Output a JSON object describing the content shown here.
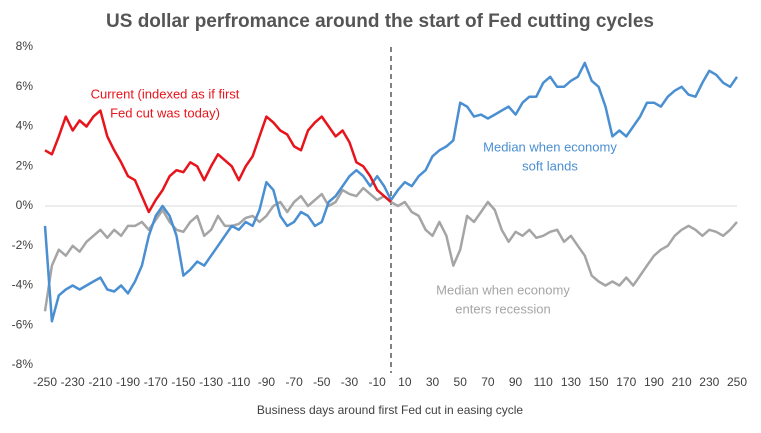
{
  "chart_data": {
    "type": "line",
    "title": "US dollar perfromance around the start of Fed cutting cycles",
    "x_label": "Business days around first Fed cut in easing cycle",
    "x": [
      -250,
      -245,
      -240,
      -235,
      -230,
      -225,
      -220,
      -215,
      -210,
      -205,
      -200,
      -195,
      -190,
      -185,
      -180,
      -175,
      -170,
      -165,
      -160,
      -155,
      -150,
      -145,
      -140,
      -135,
      -130,
      -125,
      -120,
      -115,
      -110,
      -105,
      -100,
      -95,
      -90,
      -85,
      -80,
      -75,
      -70,
      -65,
      -60,
      -55,
      -50,
      -45,
      -40,
      -35,
      -30,
      -25,
      -20,
      -15,
      -10,
      -5,
      0,
      5,
      10,
      15,
      20,
      25,
      30,
      35,
      40,
      45,
      50,
      55,
      60,
      65,
      70,
      75,
      80,
      85,
      90,
      95,
      100,
      105,
      110,
      115,
      120,
      125,
      130,
      135,
      140,
      145,
      150,
      155,
      160,
      165,
      170,
      175,
      180,
      185,
      190,
      195,
      200,
      205,
      210,
      215,
      220,
      225,
      230,
      235,
      240,
      245,
      250
    ],
    "series": [
      {
        "label": [
          "Current (indexed as if first",
          "Fed cut was today)"
        ],
        "color": "#e8141c",
        "values": [
          2.8,
          2.6,
          3.5,
          4.5,
          3.8,
          4.3,
          4.0,
          4.5,
          4.8,
          3.5,
          2.8,
          2.2,
          1.5,
          1.3,
          0.5,
          -0.3,
          0.3,
          0.8,
          1.5,
          1.8,
          1.7,
          2.2,
          2.0,
          1.3,
          2.0,
          2.6,
          2.3,
          2.0,
          1.3,
          2.0,
          2.5,
          3.5,
          4.5,
          4.2,
          3.8,
          3.6,
          3.0,
          2.8,
          3.8,
          4.2,
          4.5,
          4.0,
          3.5,
          3.8,
          3.2,
          2.2,
          2.0,
          1.5,
          0.8,
          0.5,
          0.2,
          null,
          null,
          null,
          null,
          null,
          null,
          null,
          null,
          null,
          null,
          null,
          null,
          null,
          null,
          null,
          null,
          null,
          null,
          null,
          null,
          null,
          null,
          null,
          null,
          null,
          null,
          null,
          null,
          null,
          null,
          null,
          null,
          null,
          null,
          null,
          null,
          null,
          null,
          null,
          null,
          null,
          null,
          null,
          null,
          null,
          null,
          null,
          null,
          null,
          null
        ]
      },
      {
        "label": [
          "Median when economy",
          "soft lands"
        ],
        "color": "#4a8fd2",
        "values": [
          -1.0,
          -5.8,
          -4.5,
          -4.2,
          -4.0,
          -4.2,
          -4.0,
          -3.8,
          -3.6,
          -4.2,
          -4.3,
          -4.0,
          -4.4,
          -3.8,
          -3.0,
          -1.5,
          -0.5,
          0.0,
          -0.5,
          -1.5,
          -3.5,
          -3.2,
          -2.8,
          -3.0,
          -2.5,
          -2.0,
          -1.5,
          -1.0,
          -1.2,
          -0.8,
          -1.0,
          -0.2,
          1.2,
          0.8,
          -0.5,
          -1.0,
          -0.8,
          -0.3,
          -0.5,
          -1.0,
          -0.8,
          0.2,
          0.5,
          1.0,
          1.5,
          1.8,
          1.5,
          1.0,
          1.5,
          1.0,
          0.3,
          0.8,
          1.2,
          1.0,
          1.5,
          1.8,
          2.5,
          2.8,
          3.0,
          3.3,
          5.2,
          5.0,
          4.5,
          4.6,
          4.4,
          4.6,
          4.8,
          5.0,
          4.6,
          5.2,
          5.5,
          5.5,
          6.2,
          6.5,
          6.0,
          6.0,
          6.3,
          6.5,
          7.2,
          6.3,
          6.0,
          5.0,
          3.5,
          3.8,
          3.5,
          4.0,
          4.5,
          5.2,
          5.2,
          5.0,
          5.5,
          5.8,
          6.0,
          5.6,
          5.5,
          6.2,
          6.8,
          6.6,
          6.2,
          6.0,
          6.5
        ]
      },
      {
        "label": [
          "Median when economy",
          "enters recession"
        ],
        "color": "#a5a5a5",
        "values": [
          -5.3,
          -3.0,
          -2.2,
          -2.5,
          -2.0,
          -2.3,
          -1.8,
          -1.5,
          -1.2,
          -1.6,
          -1.2,
          -1.5,
          -1.0,
          -1.0,
          -0.8,
          -1.2,
          -0.7,
          -0.2,
          -0.8,
          -1.2,
          -1.3,
          -0.8,
          -0.5,
          -1.5,
          -1.2,
          -0.5,
          -1.0,
          -1.0,
          -0.9,
          -0.6,
          -0.5,
          -0.8,
          -0.5,
          0.0,
          0.2,
          -0.3,
          0.2,
          0.5,
          0.0,
          0.3,
          0.6,
          0.0,
          0.2,
          0.8,
          0.6,
          0.5,
          0.9,
          0.6,
          0.3,
          0.5,
          0.2,
          0.0,
          0.2,
          -0.3,
          -0.5,
          -1.2,
          -1.5,
          -0.8,
          -1.5,
          -3.0,
          -2.2,
          -0.5,
          -0.8,
          -0.3,
          0.2,
          -0.2,
          -1.2,
          -1.8,
          -1.3,
          -1.5,
          -1.2,
          -1.6,
          -1.5,
          -1.3,
          -1.2,
          -1.8,
          -1.5,
          -2.0,
          -2.5,
          -3.5,
          -3.8,
          -4.0,
          -3.8,
          -4.0,
          -3.6,
          -4.0,
          -3.5,
          -3.0,
          -2.5,
          -2.2,
          -2.0,
          -1.5,
          -1.2,
          -1.0,
          -1.2,
          -1.5,
          -1.2,
          -1.3,
          -1.5,
          -1.2,
          -0.8
        ]
      }
    ],
    "xlim": [
      -250,
      250
    ],
    "xticks": [
      -250,
      -230,
      -210,
      -190,
      -170,
      -150,
      -130,
      -110,
      -90,
      -70,
      -50,
      -30,
      -10,
      10,
      30,
      50,
      70,
      90,
      110,
      130,
      150,
      170,
      190,
      210,
      230,
      250
    ],
    "ylim": [
      -8,
      8
    ],
    "yticks": [
      {
        "value": 8,
        "label": "8%"
      },
      {
        "value": 6,
        "label": "6%"
      },
      {
        "value": 4,
        "label": "4%"
      },
      {
        "value": 2,
        "label": "2%"
      },
      {
        "value": 0,
        "label": "0%"
      },
      {
        "value": -2,
        "label": "-2%"
      },
      {
        "value": -4,
        "label": "-4%"
      },
      {
        "value": -6,
        "label": "-6%"
      },
      {
        "value": -8,
        "label": "-8%"
      }
    ],
    "reference_line_x": 0
  }
}
